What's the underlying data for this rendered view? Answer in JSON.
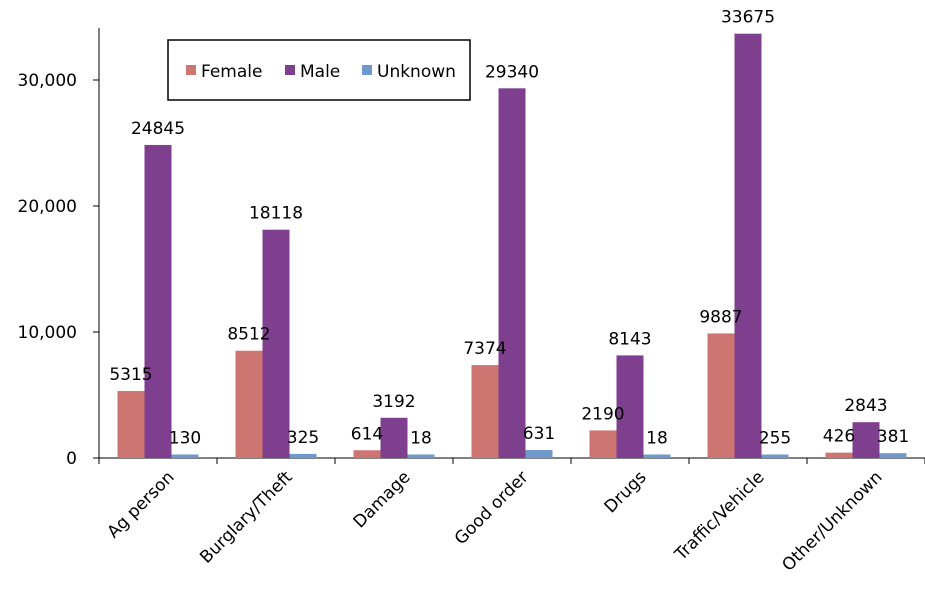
{
  "chart_data": {
    "type": "bar",
    "categories": [
      "Ag person",
      "Burglary/Theft",
      "Damage",
      "Good order",
      "Drugs",
      "Traffic/Vehicle",
      "Other/Unknown"
    ],
    "series": [
      {
        "name": "Female",
        "color": "#cd7571",
        "values": [
          5315,
          8512,
          614,
          7374,
          2190,
          9887,
          426
        ]
      },
      {
        "name": "Male",
        "color": "#7f3f8f",
        "values": [
          24845,
          18118,
          3192,
          29340,
          8143,
          33675,
          2843
        ]
      },
      {
        "name": "Unknown",
        "color": "#6f98cc",
        "values": [
          130,
          325,
          18,
          631,
          18,
          255,
          381
        ]
      }
    ],
    "y_ticks": [
      0,
      10000,
      20000,
      30000
    ],
    "y_tick_labels": [
      "0",
      "10,000",
      "20,000",
      "30,000"
    ],
    "ylim": [
      0,
      34000
    ],
    "legend_position": "top-left",
    "grid": false
  }
}
